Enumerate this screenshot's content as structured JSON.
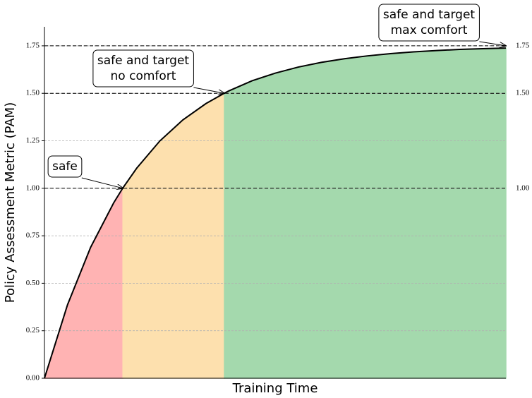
{
  "chart_data": {
    "type": "line",
    "xlabel": "Training Time",
    "ylabel": "Policy Assessment Metric (PAM)",
    "xlim": [
      0,
      1
    ],
    "ylim": [
      0,
      1.85
    ],
    "yticks": [
      {
        "value": 0,
        "label": "0.00"
      },
      {
        "value": 0.25,
        "label": "0.25"
      },
      {
        "value": 0.5,
        "label": "0.50"
      },
      {
        "value": 0.75,
        "label": "0.75"
      },
      {
        "value": 1,
        "label": "1.00"
      },
      {
        "value": 1.25,
        "label": "1.25"
      },
      {
        "value": 1.5,
        "label": "1.50"
      },
      {
        "value": 1.75,
        "label": "1.75"
      }
    ],
    "grid": true,
    "ref_lines": [
      {
        "value": 1,
        "label": "1.00"
      },
      {
        "value": 1.5,
        "label": "1.50"
      },
      {
        "value": 1.75,
        "label": "1.75"
      }
    ],
    "x": [
      0,
      0.05,
      0.1,
      0.15,
      0.17,
      0.2,
      0.25,
      0.3,
      0.35,
      0.39,
      0.4,
      0.45,
      0.5,
      0.55,
      0.6,
      0.65,
      0.7,
      0.75,
      0.8,
      0.85,
      0.9,
      0.95,
      1.0
    ],
    "series": [
      {
        "color": "#000000",
        "values": [
          0,
          0.387,
          0.689,
          0.923,
          1.002,
          1.106,
          1.249,
          1.36,
          1.446,
          1.501,
          1.513,
          1.566,
          1.606,
          1.638,
          1.663,
          1.682,
          1.697,
          1.709,
          1.718,
          1.725,
          1.731,
          1.735,
          1.738
        ]
      }
    ],
    "regions": [
      {
        "from": 0,
        "to": 0.17,
        "color": "#ffb3b3"
      },
      {
        "from": 0.17,
        "to": 0.39,
        "color": "#fde0ae"
      },
      {
        "from": 0.39,
        "to": 1.0,
        "color": "#a4d9ad"
      }
    ],
    "annotations": [
      {
        "lines": [
          "safe"
        ],
        "x": 0.17,
        "y": 1
      },
      {
        "lines": [
          "safe and target",
          "no comfort"
        ],
        "x": 0.39,
        "y": 1.5
      },
      {
        "lines": [
          "safe and target",
          "max comfort"
        ],
        "x": 1.0,
        "y": 1.75
      }
    ]
  }
}
